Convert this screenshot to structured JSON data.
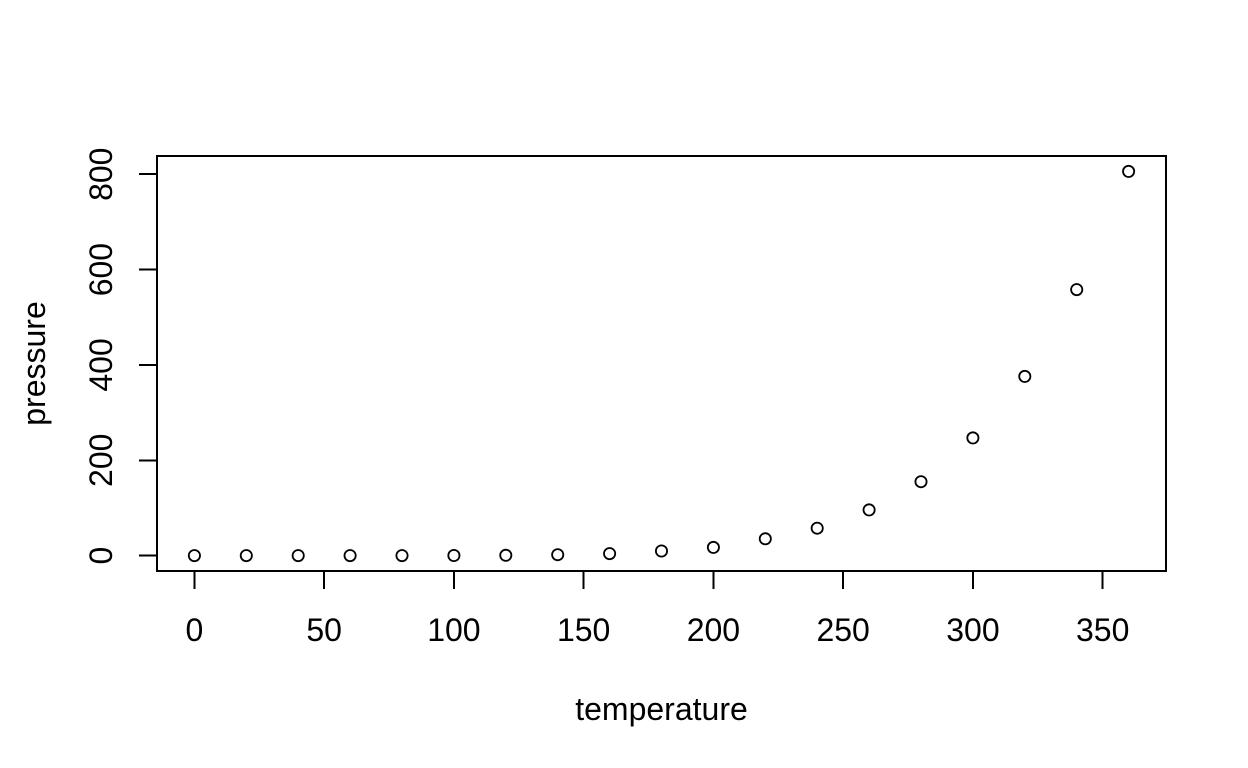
{
  "figure": {
    "background": "#ffffff",
    "foreground": "#000000"
  },
  "chart_data": {
    "type": "scatter",
    "title": "",
    "xlabel": "temperature",
    "ylabel": "pressure",
    "x": [
      0,
      20,
      40,
      60,
      80,
      100,
      120,
      140,
      160,
      180,
      200,
      220,
      240,
      260,
      280,
      300,
      320,
      340,
      360
    ],
    "y": [
      0.0002,
      0.0012,
      0.006,
      0.03,
      0.09,
      0.27,
      0.75,
      1.85,
      4.2,
      9.8,
      17.3,
      35.3,
      57.5,
      96,
      155,
      247,
      376,
      558,
      806
    ],
    "x_ticks": [
      0,
      50,
      100,
      150,
      200,
      250,
      300,
      350
    ],
    "y_ticks": [
      0,
      200,
      400,
      600,
      800
    ],
    "xlim": [
      -14.4,
      374.4
    ],
    "ylim": [
      -32.24,
      838.24
    ],
    "grid": false,
    "legend": null,
    "marker": "open-circle",
    "marker_color": "#000000",
    "axis_color": "#000000"
  }
}
